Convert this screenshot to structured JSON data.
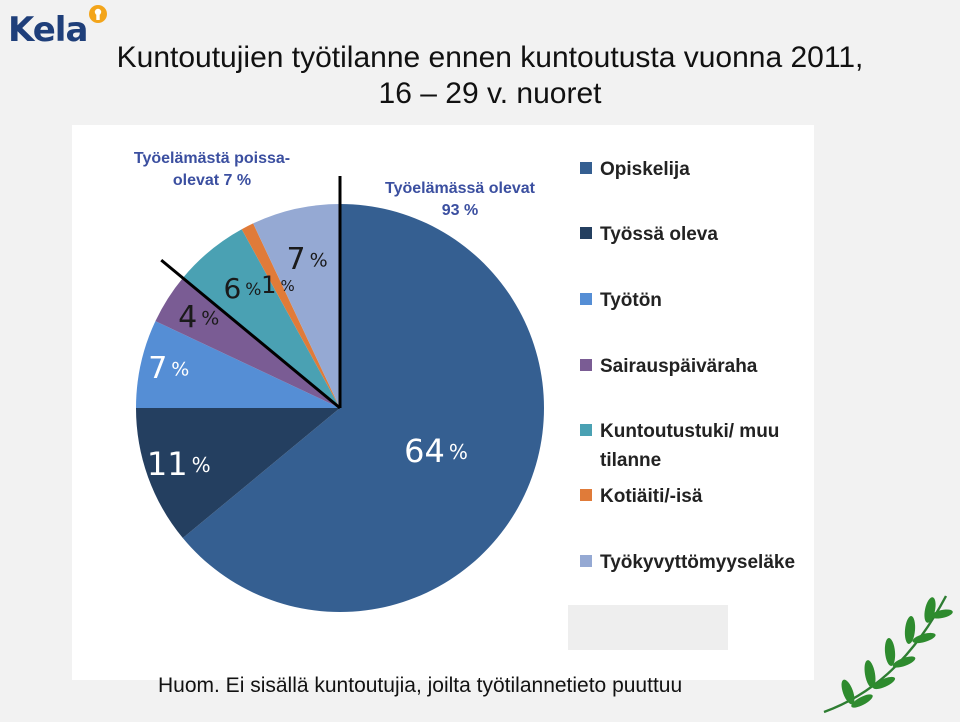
{
  "header": {
    "logo_text": "Kela",
    "title_line1": "Kuntoutujien työtilanne ennen kuntoutusta vuonna 2011,",
    "title_line2": "16 – 29 v. nuoret"
  },
  "callouts": {
    "out_of_work_line1": "Työelämästä poissa-",
    "out_of_work_line2": "olevat 7 %",
    "in_work_line1": "Työelämässä olevat",
    "in_work_line2": "93 %"
  },
  "chart_data": {
    "type": "pie",
    "title": "Kuntoutujien työtilanne ennen kuntoutusta vuonna 2011, 16 – 29 v. nuoret",
    "categories": [
      "Opiskelija",
      "Työssä oleva",
      "Työtön",
      "Sairauspäiväraha",
      "Kuntoutustuki/ muu tilanne",
      "Kotiäiti/-isä",
      "Työkyvyttömyyseläke"
    ],
    "values": [
      64,
      11,
      7,
      4,
      6,
      1,
      7
    ],
    "labels": [
      "64",
      "11",
      "7",
      "4",
      "6",
      "1",
      "7"
    ],
    "unit": "%",
    "colors": [
      "#355f91",
      "#243f60",
      "#558ed5",
      "#7a5c94",
      "#4aa1b3",
      "#e07b39",
      "#95a9d3"
    ],
    "legend_position": "right"
  },
  "footnote": "Huom. Ei sisällä kuntoutujia, joilta työtilannetieto puuttuu"
}
